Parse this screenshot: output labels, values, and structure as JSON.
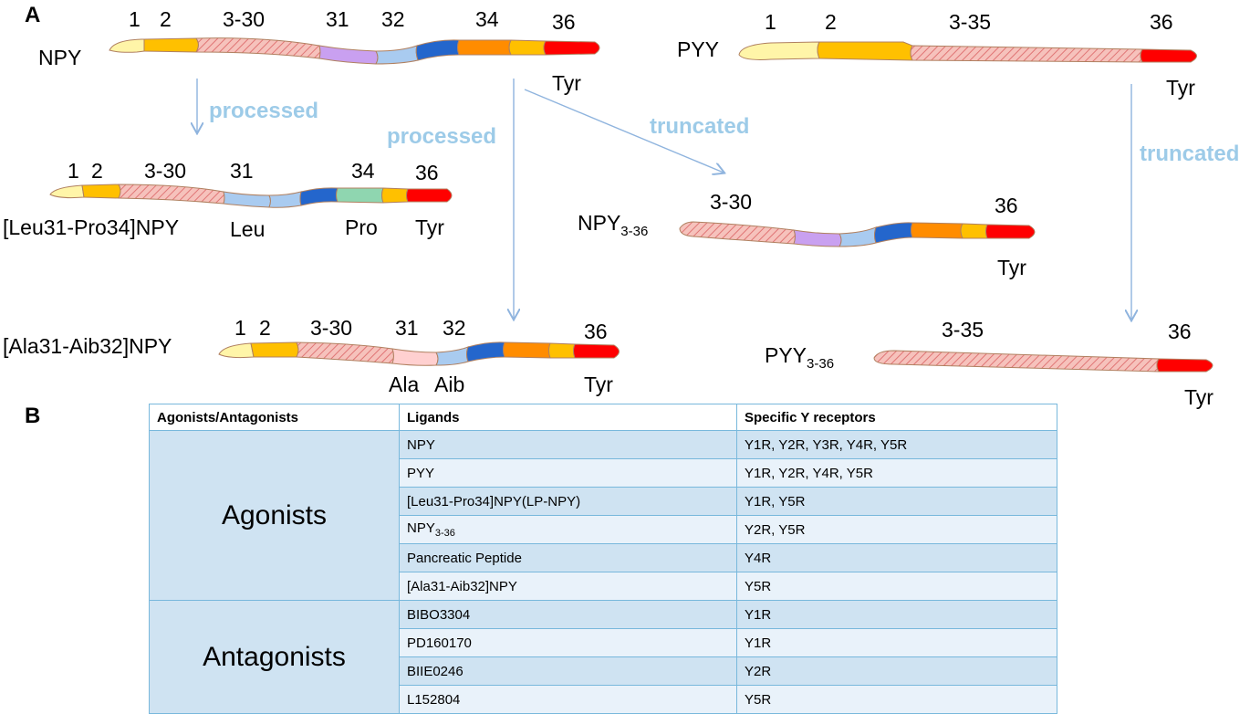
{
  "panels": {
    "a": "A",
    "b": "B"
  },
  "peptides": {
    "npy": {
      "name": "NPY",
      "res_1": "1",
      "res_2": "2",
      "res_3_30": "3-30",
      "res_31": "31",
      "res_32": "32",
      "res_34": "34",
      "res_36": "36",
      "tyr": "Tyr"
    },
    "pyy": {
      "name": "PYY",
      "res_1": "1",
      "res_2": "2",
      "res_3_35": "3-35",
      "res_36": "36",
      "tyr": "Tyr"
    },
    "lp_npy": {
      "name": "[Leu31-Pro34]NPY",
      "res_1": "1",
      "res_2": "2",
      "res_3_30": "3-30",
      "res_31": "31",
      "res_34": "34",
      "res_36": "36",
      "leu": "Leu",
      "pro": "Pro",
      "tyr": "Tyr"
    },
    "npy_3_36": {
      "name": "NPY",
      "sub": "3-36",
      "res_3_30": "3-30",
      "res_36": "36",
      "tyr": "Tyr"
    },
    "aa_npy": {
      "name": "[Ala31-Aib32]NPY",
      "res_1": "1",
      "res_2": "2",
      "res_3_30": "3-30",
      "res_31": "31",
      "res_32": "32",
      "res_36": "36",
      "ala": "Ala",
      "aib": "Aib",
      "tyr": "Tyr"
    },
    "pyy_3_36": {
      "name": "PYY",
      "sub": "3-36",
      "res_3_35": "3-35",
      "res_36": "36",
      "tyr": "Tyr"
    }
  },
  "arrows": {
    "processed_1": "processed",
    "processed_2": "processed",
    "truncated_1": "truncated",
    "truncated_2": "truncated"
  },
  "colors": {
    "yellow_light": "#fff5a8",
    "yellow": "#ffc000",
    "hatch": "#f4b6b0",
    "hatch_line": "#e08080",
    "purple": "#c9a0f0",
    "light_blue": "#a9cbf0",
    "blue": "#2466cc",
    "orange": "#ff8c00",
    "red": "#ff0000",
    "green": "#8fd6b0",
    "pink": "#ffd0d0",
    "arrow": "#8fb4de",
    "table_border": "#78b8dc"
  },
  "table": {
    "headers": [
      "Agonists/Antagonists",
      "Ligands",
      "Specific Y receptors"
    ],
    "groups": [
      {
        "name": "Agonists",
        "rows": [
          {
            "ligand": "NPY",
            "receptors": "Y1R, Y2R, Y3R, Y4R, Y5R"
          },
          {
            "ligand": "PYY",
            "receptors": "Y1R, Y2R, Y4R, Y5R"
          },
          {
            "ligand": "[Leu31-Pro34]NPY(LP-NPY)",
            "receptors": "Y1R, Y5R"
          },
          {
            "ligand": "NPY",
            "ligand_sub": "3-36",
            "receptors": "Y2R, Y5R"
          },
          {
            "ligand": "Pancreatic Peptide",
            "receptors": "Y4R"
          },
          {
            "ligand": "[Ala31-Aib32]NPY",
            "receptors": "Y5R"
          }
        ]
      },
      {
        "name": "Antagonists",
        "rows": [
          {
            "ligand": "BIBO3304",
            "receptors": "Y1R"
          },
          {
            "ligand": "PD160170",
            "receptors": "Y1R"
          },
          {
            "ligand": "BIIE0246",
            "receptors": "Y2R"
          },
          {
            "ligand": "L152804",
            "receptors": "Y5R"
          }
        ]
      }
    ]
  }
}
